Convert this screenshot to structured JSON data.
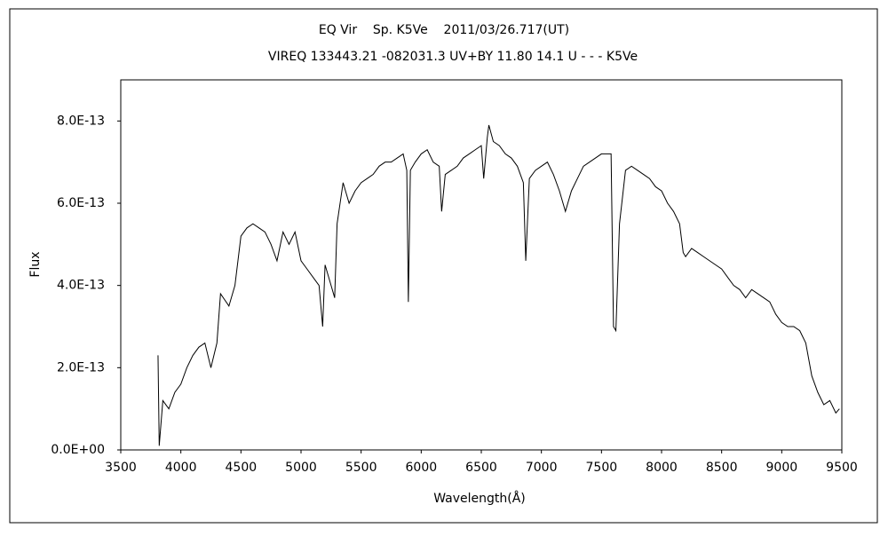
{
  "chart_data": {
    "type": "line",
    "title": "EQ Vir    Sp. K5Ve    2011/03/26.717(UT)",
    "subtitle": "VIREQ 133443.21 -082031.3 UV+BY 11.80 14.1 U - - - K5Ve",
    "x_label": "Wavelength(Å)",
    "y_label": "Flux",
    "xlim": [
      3500,
      9500
    ],
    "xticks": [
      3500,
      4000,
      4500,
      5000,
      5500,
      6000,
      6500,
      7000,
      7500,
      8000,
      8500,
      9000,
      9500
    ],
    "ylim": [
      0,
      9e-13
    ],
    "yticks": [
      {
        "value": 0,
        "label": "0.0E+00"
      },
      {
        "value": 2e-13,
        "label": "2.0E-13"
      },
      {
        "value": 4e-13,
        "label": "4.0E-13"
      },
      {
        "value": 6e-13,
        "label": "6.0E-13"
      },
      {
        "value": 8e-13,
        "label": "8.0E-13"
      }
    ],
    "grid": false,
    "x": [
      3810,
      3820,
      3850,
      3900,
      3950,
      4000,
      4050,
      4100,
      4150,
      4200,
      4250,
      4300,
      4330,
      4400,
      4450,
      4500,
      4550,
      4600,
      4650,
      4700,
      4750,
      4800,
      4850,
      4900,
      4950,
      5000,
      5050,
      5100,
      5150,
      5180,
      5200,
      5250,
      5280,
      5300,
      5350,
      5400,
      5450,
      5500,
      5550,
      5600,
      5650,
      5700,
      5750,
      5800,
      5850,
      5880,
      5893,
      5910,
      5950,
      6000,
      6050,
      6100,
      6150,
      6170,
      6200,
      6250,
      6300,
      6350,
      6400,
      6450,
      6500,
      6520,
      6550,
      6563,
      6600,
      6650,
      6700,
      6750,
      6800,
      6850,
      6870,
      6900,
      6950,
      7000,
      7050,
      7100,
      7150,
      7200,
      7250,
      7300,
      7350,
      7400,
      7450,
      7500,
      7550,
      7580,
      7600,
      7620,
      7650,
      7700,
      7750,
      7800,
      7850,
      7900,
      7950,
      8000,
      8050,
      8100,
      8150,
      8180,
      8200,
      8250,
      8300,
      8350,
      8400,
      8450,
      8500,
      8550,
      8600,
      8650,
      8700,
      8750,
      8800,
      8850,
      8900,
      8950,
      9000,
      9050,
      9100,
      9150,
      9200,
      9250,
      9300,
      9350,
      9400,
      9450,
      9480
    ],
    "series": [
      {
        "name": "EQ Vir",
        "color": "#000000",
        "values": [
          2.3e-13,
          1e-14,
          1.2e-13,
          1e-13,
          1.4e-13,
          1.6e-13,
          2e-13,
          2.3e-13,
          2.5e-13,
          2.6e-13,
          2e-13,
          2.6e-13,
          3.8e-13,
          3.5e-13,
          4e-13,
          5.2e-13,
          5.4e-13,
          5.5e-13,
          5.4e-13,
          5.3e-13,
          5e-13,
          4.6e-13,
          5.3e-13,
          5e-13,
          5.3e-13,
          4.6e-13,
          4.4e-13,
          4.2e-13,
          4e-13,
          3e-13,
          4.5e-13,
          4e-13,
          3.7e-13,
          5.5e-13,
          6.5e-13,
          6e-13,
          6.3e-13,
          6.5e-13,
          6.6e-13,
          6.7e-13,
          6.9e-13,
          7e-13,
          7e-13,
          7.1e-13,
          7.2e-13,
          6.8e-13,
          3.6e-13,
          6.8e-13,
          7e-13,
          7.2e-13,
          7.3e-13,
          7e-13,
          6.9e-13,
          5.8e-13,
          6.7e-13,
          6.8e-13,
          6.9e-13,
          7.1e-13,
          7.2e-13,
          7.3e-13,
          7.4e-13,
          6.6e-13,
          7.6e-13,
          7.9e-13,
          7.5e-13,
          7.4e-13,
          7.2e-13,
          7.1e-13,
          6.9e-13,
          6.5e-13,
          4.6e-13,
          6.6e-13,
          6.8e-13,
          6.9e-13,
          7e-13,
          6.7e-13,
          6.3e-13,
          5.8e-13,
          6.3e-13,
          6.6e-13,
          6.9e-13,
          7e-13,
          7.1e-13,
          7.2e-13,
          7.2e-13,
          7.2e-13,
          3e-13,
          2.9e-13,
          5.5e-13,
          6.8e-13,
          6.9e-13,
          6.8e-13,
          6.7e-13,
          6.6e-13,
          6.4e-13,
          6.3e-13,
          6e-13,
          5.8e-13,
          5.5e-13,
          4.8e-13,
          4.7e-13,
          4.9e-13,
          4.8e-13,
          4.7e-13,
          4.6e-13,
          4.5e-13,
          4.4e-13,
          4.2e-13,
          4e-13,
          3.9e-13,
          3.7e-13,
          3.9e-13,
          3.8e-13,
          3.7e-13,
          3.6e-13,
          3.3e-13,
          3.1e-13,
          3e-13,
          3e-13,
          2.9e-13,
          2.6e-13,
          1.8e-13,
          1.4e-13,
          1.1e-13,
          1.2e-13,
          9e-14,
          1e-13
        ]
      }
    ]
  }
}
